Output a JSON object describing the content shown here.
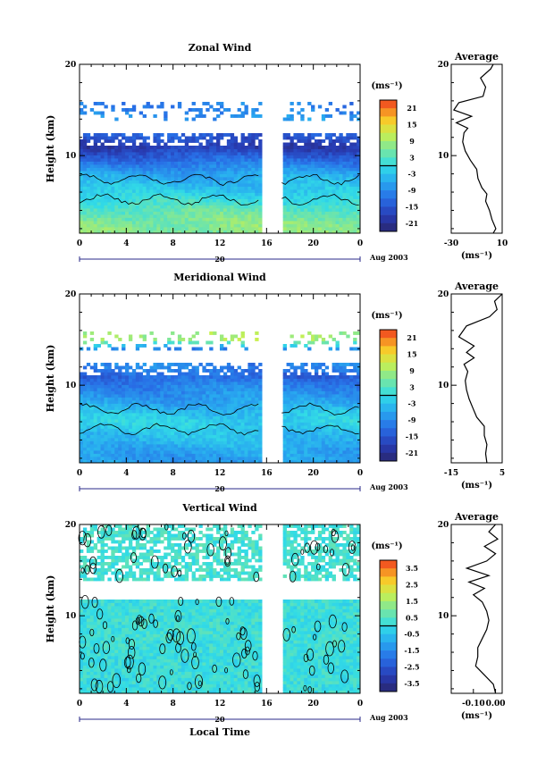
{
  "figure": {
    "date_label": "Aug 2003",
    "day_label": "20",
    "xlabel": "Local Time"
  },
  "chart_data": [
    {
      "type": "heatmap",
      "title": "Zonal Wind",
      "ylabel": "Height (km)",
      "xlim": [
        0,
        24
      ],
      "ylim": [
        1.5,
        20
      ],
      "xticks": [
        "0",
        "4",
        "8",
        "12",
        "16",
        "20",
        "0"
      ],
      "yticks": [
        "10",
        "20"
      ],
      "colorbar": {
        "unit": "(ms⁻¹)",
        "range": [
          -24,
          24
        ],
        "ticks": [
          "21",
          "15",
          "9",
          "3",
          "-3",
          "-9",
          "-15",
          "-21"
        ]
      },
      "data_gap_hours": [
        15.6,
        17.3
      ],
      "profile_by_height": [
        {
          "h": 2,
          "v": 7
        },
        {
          "h": 3,
          "v": 6
        },
        {
          "h": 4,
          "v": 4
        },
        {
          "h": 5,
          "v": 1
        },
        {
          "h": 6,
          "v": -2
        },
        {
          "h": 7,
          "v": -4
        },
        {
          "h": 8,
          "v": -6
        },
        {
          "h": 9,
          "v": -10
        },
        {
          "h": 10,
          "v": -14
        },
        {
          "h": 11,
          "v": -19
        },
        {
          "h": 11.8,
          "v": -16
        },
        {
          "h": 14,
          "v": -8
        },
        {
          "h": 15,
          "v": -10
        }
      ],
      "average": {
        "title": "Average",
        "xlim": [
          -30,
          10
        ],
        "xticks": [
          "-30",
          "10"
        ],
        "xlabel": "(ms⁻¹)",
        "yticks": [
          "10",
          "20"
        ],
        "points": [
          {
            "h": 1.5,
            "v": 3
          },
          {
            "h": 2,
            "v": 5
          },
          {
            "h": 3,
            "v": 2
          },
          {
            "h": 4,
            "v": 0
          },
          {
            "h": 5,
            "v": -3
          },
          {
            "h": 5.8,
            "v": -2
          },
          {
            "h": 6.5,
            "v": -6
          },
          {
            "h": 7.5,
            "v": -9
          },
          {
            "h": 8.5,
            "v": -10
          },
          {
            "h": 9.5,
            "v": -15
          },
          {
            "h": 10.5,
            "v": -19
          },
          {
            "h": 11.5,
            "v": -21
          },
          {
            "h": 12.5,
            "v": -20
          },
          {
            "h": 13,
            "v": -17
          },
          {
            "h": 13.6,
            "v": -26
          },
          {
            "h": 14.3,
            "v": -14
          },
          {
            "h": 15,
            "v": -28
          },
          {
            "h": 15.8,
            "v": -24
          },
          {
            "h": 16.5,
            "v": -5
          },
          {
            "h": 17.5,
            "v": -3
          },
          {
            "h": 18.5,
            "v": -7
          },
          {
            "h": 19.5,
            "v": 1
          },
          {
            "h": 20,
            "v": 3
          }
        ]
      }
    },
    {
      "type": "heatmap",
      "title": "Meridional Wind",
      "ylabel": "Height (km)",
      "xlim": [
        0,
        24
      ],
      "ylim": [
        1.5,
        20
      ],
      "xticks": [
        "0",
        "4",
        "8",
        "12",
        "16",
        "20",
        "0"
      ],
      "yticks": [
        "10",
        "20"
      ],
      "colorbar": {
        "unit": "(ms⁻¹)",
        "range": [
          -24,
          24
        ],
        "ticks": [
          "21",
          "15",
          "9",
          "3",
          "-3",
          "-9",
          "-15",
          "-21"
        ]
      },
      "data_gap_hours": [
        15.6,
        17.3
      ],
      "profile_by_height": [
        {
          "h": 2,
          "v": -7
        },
        {
          "h": 3,
          "v": -6
        },
        {
          "h": 4,
          "v": -4
        },
        {
          "h": 5,
          "v": -3
        },
        {
          "h": 6,
          "v": -1
        },
        {
          "h": 7,
          "v": -3
        },
        {
          "h": 8,
          "v": -6
        },
        {
          "h": 9,
          "v": -8
        },
        {
          "h": 10,
          "v": -10
        },
        {
          "h": 11,
          "v": -13
        },
        {
          "h": 11.8,
          "v": -10
        },
        {
          "h": 14,
          "v": -9
        },
        {
          "h": 15,
          "v": 9
        }
      ],
      "average": {
        "title": "Average",
        "xlim": [
          -15,
          5
        ],
        "xticks": [
          "-15",
          "5"
        ],
        "xlabel": "(ms⁻¹)",
        "yticks": [
          "10",
          "20"
        ],
        "points": [
          {
            "h": 1.5,
            "v": -1
          },
          {
            "h": 2.5,
            "v": -1.5
          },
          {
            "h": 3.5,
            "v": -1
          },
          {
            "h": 4.5,
            "v": -2
          },
          {
            "h": 5.5,
            "v": -2
          },
          {
            "h": 6.5,
            "v": -5
          },
          {
            "h": 7.5,
            "v": -6.5
          },
          {
            "h": 8.5,
            "v": -8
          },
          {
            "h": 9.5,
            "v": -9
          },
          {
            "h": 10.5,
            "v": -9.5
          },
          {
            "h": 11.5,
            "v": -8.5
          },
          {
            "h": 12.3,
            "v": -10
          },
          {
            "h": 13,
            "v": -6
          },
          {
            "h": 13.6,
            "v": -9
          },
          {
            "h": 14.3,
            "v": -6
          },
          {
            "h": 15.3,
            "v": -12
          },
          {
            "h": 16.5,
            "v": -9
          },
          {
            "h": 17.5,
            "v": 0
          },
          {
            "h": 18.3,
            "v": 3
          },
          {
            "h": 19.2,
            "v": 2
          },
          {
            "h": 20,
            "v": 5
          }
        ]
      }
    },
    {
      "type": "heatmap",
      "title": "Vertical Wind",
      "ylabel": "Height (km)",
      "xlim": [
        0,
        24
      ],
      "ylim": [
        1.5,
        20
      ],
      "xticks": [
        "0",
        "4",
        "8",
        "12",
        "16",
        "20",
        "0"
      ],
      "yticks": [
        "10",
        "20"
      ],
      "colorbar": {
        "unit": "(ms⁻¹)",
        "range": [
          -4,
          4
        ],
        "ticks": [
          "3.5",
          "2.5",
          "1.5",
          "0.5",
          "-0.5",
          "-1.5",
          "-2.5",
          "-3.5"
        ]
      },
      "data_gap_hours": [
        15.6,
        17.3
      ],
      "profile_by_height": [
        {
          "h": 2,
          "v": 0.1
        },
        {
          "h": 5,
          "v": 0.1
        },
        {
          "h": 8,
          "v": 0.2
        },
        {
          "h": 11,
          "v": 0.15
        },
        {
          "h": 11.8,
          "v": 0.1
        },
        {
          "h": 14,
          "v": 0.3
        },
        {
          "h": 17,
          "v": 0.3
        },
        {
          "h": 20,
          "v": 0.3
        }
      ],
      "average": {
        "title": "Average",
        "xlim": [
          -0.2,
          0.03
        ],
        "xticks": [
          "-0.10",
          "0.00"
        ],
        "xlabel": "(ms⁻¹)",
        "yticks": [
          "10",
          "20"
        ],
        "points": [
          {
            "h": 1.5,
            "v": 0.0
          },
          {
            "h": 2.5,
            "v": -0.01
          },
          {
            "h": 3.5,
            "v": -0.05
          },
          {
            "h": 4.5,
            "v": -0.09
          },
          {
            "h": 5.5,
            "v": -0.08
          },
          {
            "h": 6.5,
            "v": -0.08
          },
          {
            "h": 7.5,
            "v": -0.06
          },
          {
            "h": 8.5,
            "v": -0.04
          },
          {
            "h": 9.5,
            "v": -0.03
          },
          {
            "h": 10.5,
            "v": -0.04
          },
          {
            "h": 11.5,
            "v": -0.06
          },
          {
            "h": 12.3,
            "v": -0.1
          },
          {
            "h": 13,
            "v": -0.05
          },
          {
            "h": 13.7,
            "v": -0.12
          },
          {
            "h": 14.4,
            "v": -0.03
          },
          {
            "h": 15.2,
            "v": -0.13
          },
          {
            "h": 16,
            "v": -0.04
          },
          {
            "h": 16.8,
            "v": 0.0
          },
          {
            "h": 17.6,
            "v": -0.05
          },
          {
            "h": 18.4,
            "v": 0.01
          },
          {
            "h": 19.2,
            "v": -0.03
          },
          {
            "h": 20,
            "v": 0.0
          }
        ]
      }
    }
  ]
}
